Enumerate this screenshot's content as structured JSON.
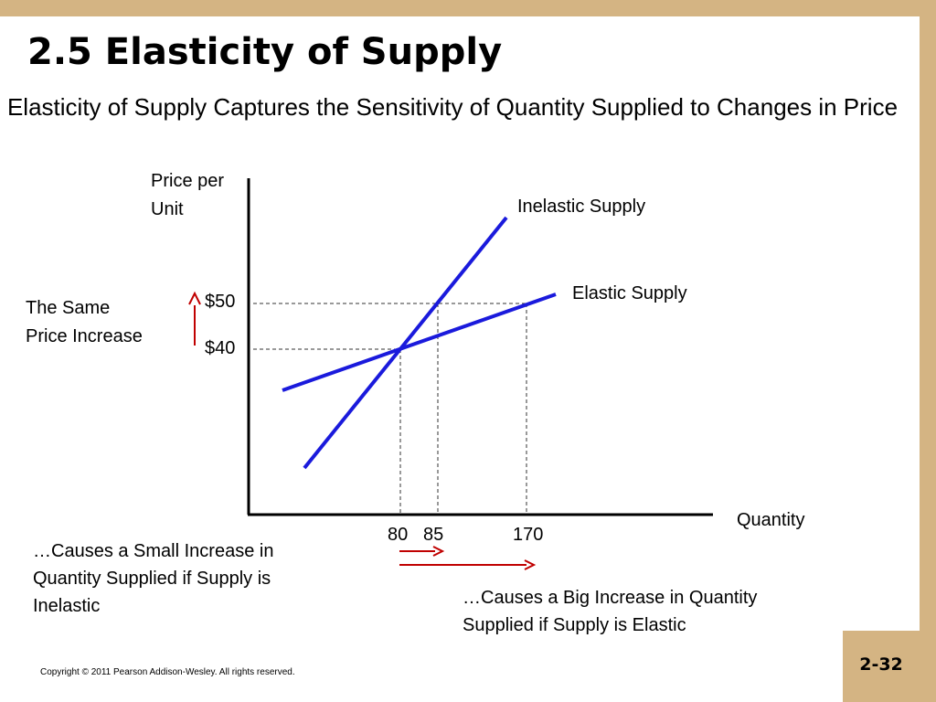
{
  "slide": {
    "title": "2.5 Elasticity of Supply",
    "subtitle": "Elasticity of Supply Captures the Sensitivity of Quantity Supplied to Changes in Price",
    "slide_number": "2-32",
    "copyright": "Copyright © 2011 Pearson Addison-Wesley. All rights reserved."
  },
  "diagram": {
    "y_axis_label_line1": "Price per",
    "y_axis_label_line2": "Unit",
    "x_axis_label": "Quantity",
    "inelastic_label": "Inelastic Supply",
    "elastic_label": "Elastic Supply",
    "price_high": "$50",
    "price_low": "$40",
    "qty_start": "80",
    "qty_inelastic": "85",
    "qty_elastic": "170",
    "price_note_line1": "The Same",
    "price_note_line2": "Price Increase",
    "inelastic_note_line1": "…Causes a Small Increase in",
    "inelastic_note_line2": "Quantity Supplied if Supply is",
    "inelastic_note_line3": "Inelastic",
    "elastic_note_line1": "…Causes a Big Increase in Quantity",
    "elastic_note_line2": "Supplied if Supply is Elastic",
    "colors": {
      "supply_curve": "#1a1adc",
      "arrow": "#c00000",
      "axis": "#000000",
      "guide": "#333333",
      "background_frame": "#d4b483"
    }
  }
}
